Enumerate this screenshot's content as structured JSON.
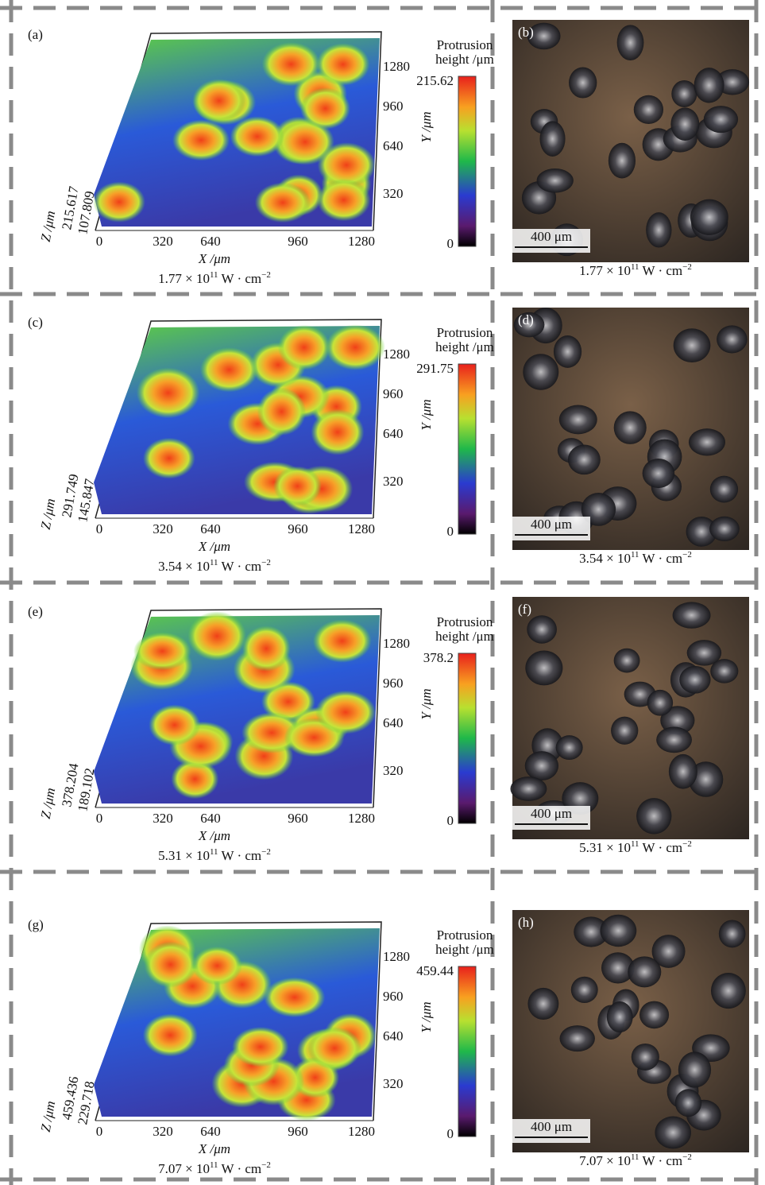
{
  "panels": [
    {
      "surface": {
        "label": "(a)",
        "x_ticks": [
          "0",
          "320",
          "640",
          "960",
          "1280"
        ],
        "x_label": "X /μm",
        "y_ticks": [
          "1280",
          "960",
          "640",
          "320"
        ],
        "y_label": "Y /μm",
        "z_ticks": [
          "215.617",
          "107.809"
        ],
        "z_label": "Z /μm",
        "colorbar": {
          "title": [
            "Protrusion",
            "height /μm"
          ],
          "max": "215.62",
          "min": "0"
        },
        "caption": {
          "base": "1.77 × 10",
          "exp": "11",
          "unit": " W · cm",
          "unit_exp": "−2"
        }
      },
      "micrograph": {
        "label": "(b)",
        "scale": "400 μm",
        "caption": {
          "base": "1.77 × 10",
          "exp": "11",
          "unit": " W · cm",
          "unit_exp": "−2"
        }
      }
    },
    {
      "surface": {
        "label": "(c)",
        "x_ticks": [
          "0",
          "320",
          "640",
          "960",
          "1280"
        ],
        "x_label": "X /μm",
        "y_ticks": [
          "1280",
          "960",
          "640",
          "320"
        ],
        "y_label": "Y /μm",
        "z_ticks": [
          "291.749",
          "145.847"
        ],
        "z_label": "Z /μm",
        "colorbar": {
          "title": [
            "Protrusion",
            "height /μm"
          ],
          "max": "291.75",
          "min": "0"
        },
        "caption": {
          "base": "3.54 × 10",
          "exp": "11",
          "unit": " W · cm",
          "unit_exp": "−2"
        }
      },
      "micrograph": {
        "label": "(d)",
        "scale": "400 μm",
        "caption": {
          "base": "3.54 × 10",
          "exp": "11",
          "unit": " W · cm",
          "unit_exp": "−2"
        }
      }
    },
    {
      "surface": {
        "label": "(e)",
        "x_ticks": [
          "0",
          "320",
          "640",
          "960",
          "1280"
        ],
        "x_label": "X /μm",
        "y_ticks": [
          "1280",
          "960",
          "640",
          "320"
        ],
        "y_label": "Y /μm",
        "z_ticks": [
          "378.204",
          "189.102"
        ],
        "z_label": "Z /μm",
        "colorbar": {
          "title": [
            "Protrusion",
            "height /μm"
          ],
          "max": "378.2",
          "min": "0"
        },
        "caption": {
          "base": "5.31 × 10",
          "exp": "11",
          "unit": " W · cm",
          "unit_exp": "−2"
        }
      },
      "micrograph": {
        "label": "(f)",
        "scale": "400 μm",
        "caption": {
          "base": "5.31 × 10",
          "exp": "11",
          "unit": " W · cm",
          "unit_exp": "−2"
        }
      }
    },
    {
      "surface": {
        "label": "(g)",
        "x_ticks": [
          "0",
          "320",
          "640",
          "960",
          "1280"
        ],
        "x_label": "X /μm",
        "y_ticks": [
          "1280",
          "960",
          "640",
          "320"
        ],
        "y_label": "Y /μm",
        "z_ticks": [
          "459.436",
          "229.718"
        ],
        "z_label": "Z /μm",
        "colorbar": {
          "title": [
            "Protrusion",
            "height /μm"
          ],
          "max": "459.44",
          "min": "0"
        },
        "caption": {
          "base": "7.07 × 10",
          "exp": "11",
          "unit": " W · cm",
          "unit_exp": "−2"
        }
      },
      "micrograph": {
        "label": "(h)",
        "scale": "400 μm",
        "caption": {
          "base": "7.07 × 10",
          "exp": "11",
          "unit": " W · cm",
          "unit_exp": "−2"
        }
      }
    }
  ]
}
